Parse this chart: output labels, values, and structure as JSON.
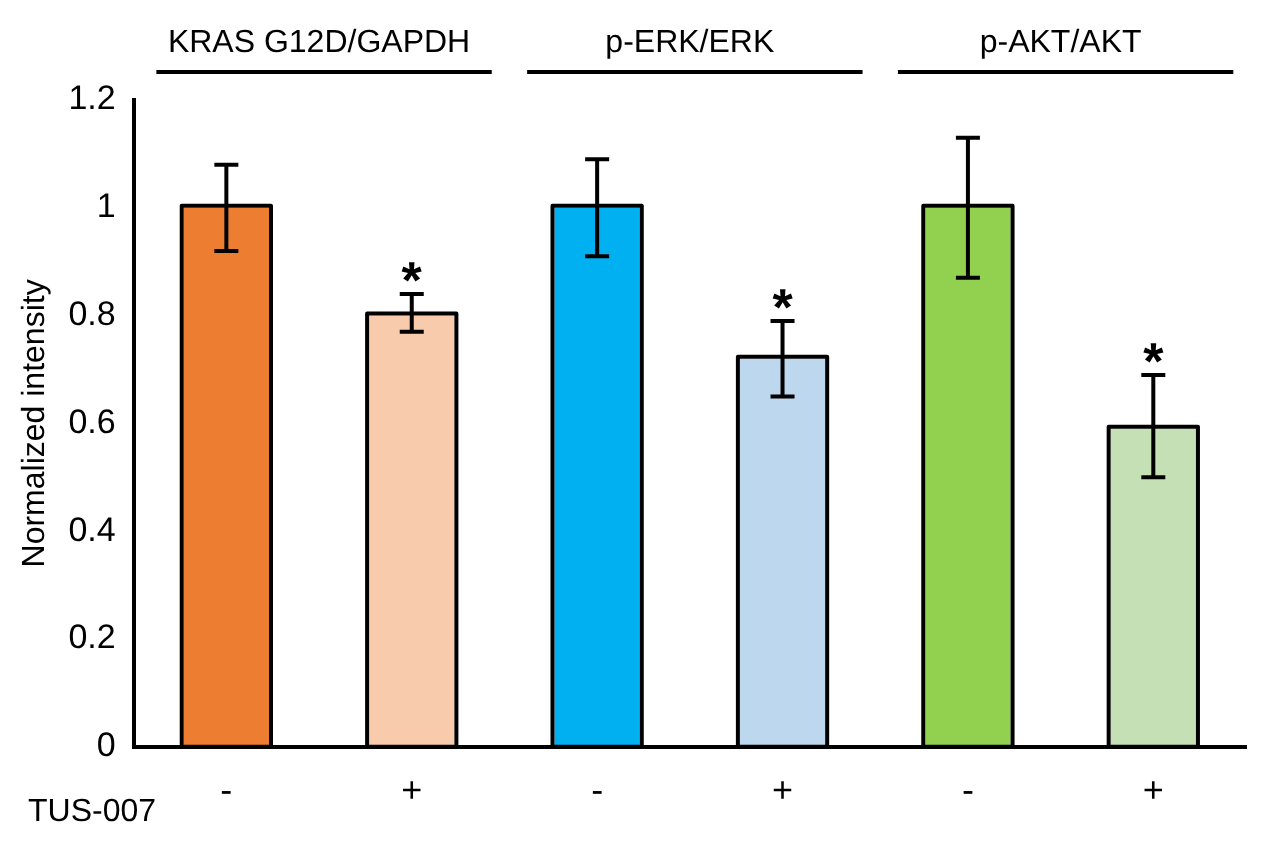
{
  "chart_data": {
    "type": "bar",
    "ylabel": "Normalized intensity",
    "xlabel": "TUS-007",
    "categories": [
      "-",
      "+",
      "-",
      "+",
      "-",
      "+"
    ],
    "values": [
      1,
      0.8,
      1,
      0.72,
      1,
      0.59
    ],
    "colors": [
      "#ed7d31",
      "#f8cbad",
      "#00b0f0",
      "#bdd7ee",
      "#92d050",
      "#c5e0b4"
    ],
    "errors": [
      [
        0.92,
        1.08
      ],
      [
        0.77,
        0.84
      ],
      [
        0.91,
        1.09
      ],
      [
        0.65,
        0.79
      ],
      [
        0.87,
        1.13
      ],
      [
        0.5,
        0.69
      ]
    ],
    "value_labels": [
      null,
      "*",
      null,
      "*",
      null,
      "*"
    ],
    "annotations": [
      "KRAS G12D/GAPDH",
      "p-ERK/ERK",
      "p-AKT/AKT"
    ],
    "ylim": [
      0,
      1.2
    ],
    "yticks": [
      0,
      0.2,
      0.4,
      0.6,
      0.8,
      1,
      1.2
    ],
    "grid": false,
    "legend": false
  }
}
